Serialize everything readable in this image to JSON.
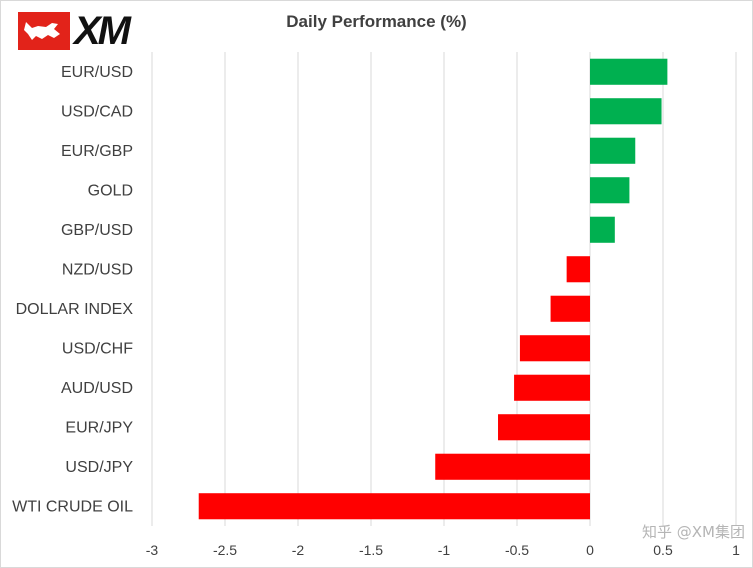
{
  "brand": {
    "logo_text": "XM",
    "logo_color": "#e2231a"
  },
  "watermark": "知乎 @XM集团",
  "colors": {
    "positive": "#00b050",
    "negative": "#ff0000",
    "grid": "#d9d9d9",
    "axis_text": "#404040"
  },
  "chart_data": {
    "type": "bar",
    "orientation": "horizontal",
    "title": "Daily Performance (%)",
    "xlabel": "",
    "ylabel": "",
    "xlim": [
      -3,
      1
    ],
    "xticks": [
      -3,
      -2.5,
      -2,
      -1.5,
      -1,
      -0.5,
      0,
      0.5,
      1
    ],
    "grid": true,
    "legend": "none",
    "categories": [
      "EUR/USD",
      "USD/CAD",
      "EUR/GBP",
      "GOLD",
      "GBP/USD",
      "NZD/USD",
      "DOLLAR INDEX",
      "USD/CHF",
      "AUD/USD",
      "EUR/JPY",
      "USD/JPY",
      "WTI CRUDE OIL"
    ],
    "values": [
      0.53,
      0.49,
      0.31,
      0.27,
      0.17,
      -0.16,
      -0.27,
      -0.48,
      -0.52,
      -0.63,
      -1.06,
      -2.68
    ]
  }
}
